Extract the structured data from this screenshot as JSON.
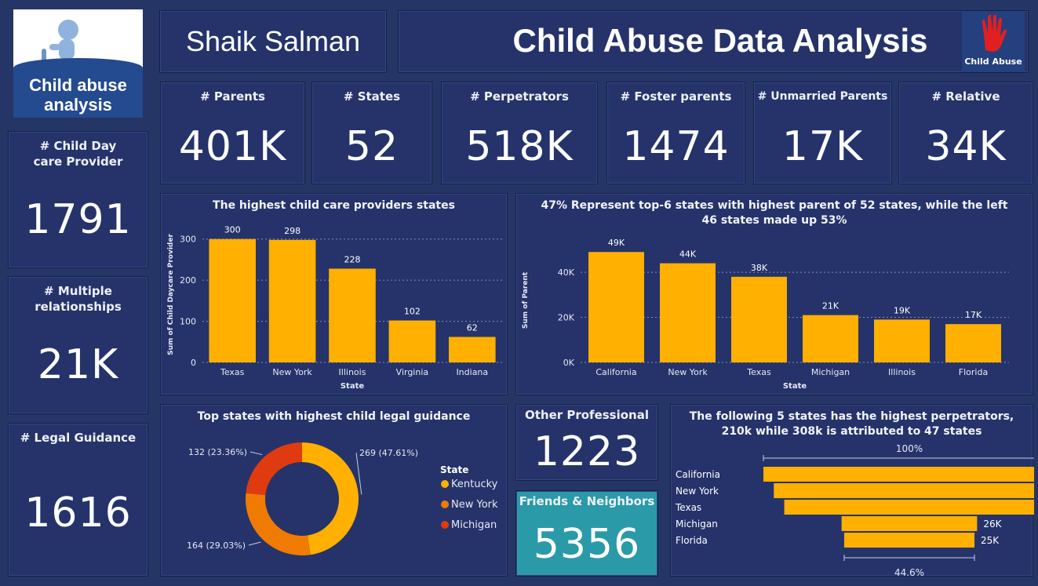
{
  "header": {
    "logo_title_line1": "Child abuse",
    "logo_title_line2": "analysis",
    "author": "Shaik Salman",
    "title": "Child Abuse Data Analysis",
    "badge_text": "Child Abuse"
  },
  "kpis": {
    "parents": {
      "label": "# Parents",
      "value": "401K"
    },
    "states": {
      "label": "# States",
      "value": "52"
    },
    "perpetrators": {
      "label": "# Perpetrators",
      "value": "518K"
    },
    "foster": {
      "label": "# Foster parents",
      "value": "1474"
    },
    "unmarried": {
      "label": "# Unmarried Parents",
      "value": "17K"
    },
    "relative": {
      "label": "# Relative",
      "value": "34K"
    },
    "daycare": {
      "label": "# Child Day care Provider",
      "value": "1791"
    },
    "multiple": {
      "label": "# Multiple relationships",
      "value": "21K"
    },
    "legal": {
      "label": "# Legal Guidance",
      "value": "1616"
    },
    "other": {
      "label": "Other Professional",
      "value": "1223"
    },
    "friends": {
      "label": "Friends & Neighbors",
      "value": "5356"
    }
  },
  "colors": {
    "background": "#253566",
    "card": "#25336a",
    "bar": "#ffb000",
    "donut_kentucky": "#ffb000",
    "donut_newyork": "#ef7b00",
    "donut_michigan": "#e03a10",
    "friends_card": "#2a9aa8"
  },
  "chart_data": [
    {
      "type": "bar",
      "title": "The highest child care providers states",
      "xlabel": "State",
      "ylabel": "Sum of Child Daycare Provider",
      "categories": [
        "Texas",
        "New York",
        "Illinois",
        "Virginia",
        "Indiana"
      ],
      "values": [
        300,
        298,
        228,
        102,
        62
      ],
      "data_labels": [
        "300",
        "298",
        "228",
        "102",
        "62"
      ],
      "yticks": [
        "0",
        "100",
        "200",
        "300"
      ],
      "ylim": [
        0,
        330
      ],
      "grid": true
    },
    {
      "type": "bar",
      "title": "47% Represent top-6 states with highest parent of 52 states, while the left 46 states made up 53%",
      "xlabel": "State",
      "ylabel": "Sum of Parent",
      "categories": [
        "California",
        "New York",
        "Texas",
        "Michigan",
        "Illinois",
        "Florida"
      ],
      "values": [
        49000,
        44000,
        38000,
        21000,
        19000,
        17000
      ],
      "data_labels": [
        "49K",
        "44K",
        "38K",
        "21K",
        "19K",
        "17K"
      ],
      "yticks": [
        "0K",
        "20K",
        "40K"
      ],
      "ylim": [
        0,
        55000
      ],
      "grid": true
    },
    {
      "type": "pie",
      "title": "Top states with highest child legal guidance",
      "legend_title": "State",
      "legend_position": "right",
      "slices": [
        {
          "name": "Kentucky",
          "value": 269,
          "label": "269 (47.61%)"
        },
        {
          "name": "New York",
          "value": 164,
          "label": "164 (29.03%)"
        },
        {
          "name": "Michigan",
          "value": 132,
          "label": "132 (23.36%)"
        }
      ]
    },
    {
      "type": "bar",
      "title": "The following 5 states has the highest perpetrators, 210k while 308k is attributed to 47 states",
      "orientation": "funnel",
      "categories": [
        "California",
        "New York",
        "Texas",
        "Michigan",
        "Florida"
      ],
      "values": [
        56000,
        52000,
        48000,
        26000,
        25000
      ],
      "data_labels": [
        "",
        "",
        "",
        "26K",
        "25K"
      ],
      "top_label": "100%",
      "bottom_label": "44.6%"
    }
  ]
}
